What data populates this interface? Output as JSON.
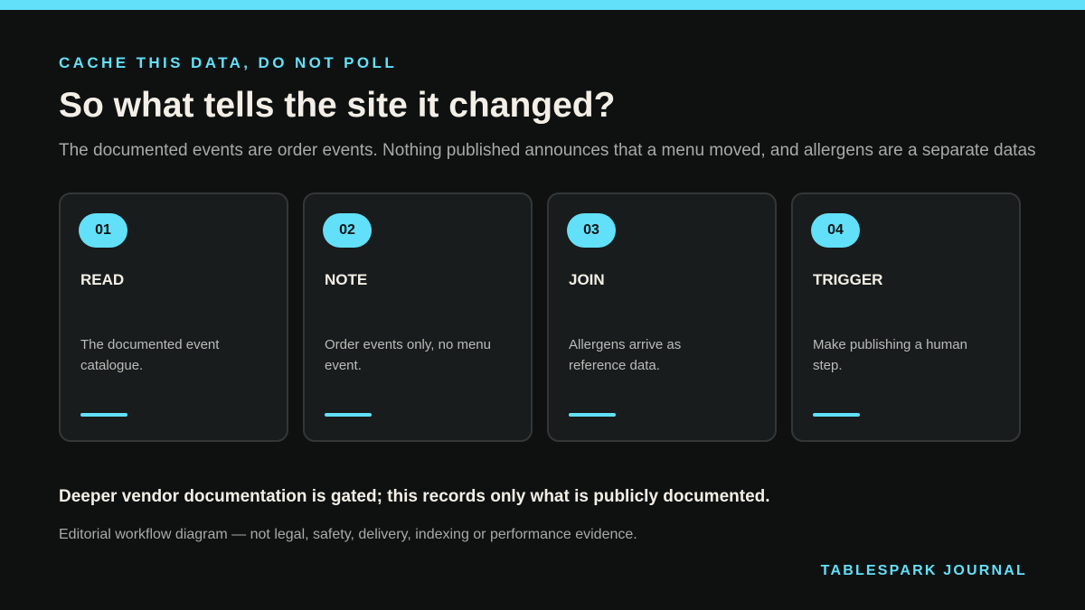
{
  "eyebrow": "CACHE THIS DATA, DO NOT POLL",
  "title": "So what tells the site it changed?",
  "subtitle": "The documented events are order events. Nothing published announces that a menu moved, and allergens are a separate datas",
  "steps": [
    {
      "number": "01",
      "title": "READ",
      "body": "The documented event catalogue."
    },
    {
      "number": "02",
      "title": "NOTE",
      "body": "Order events only, no menu event."
    },
    {
      "number": "03",
      "title": "JOIN",
      "body": "Allergens arrive as reference data."
    },
    {
      "number": "04",
      "title": "TRIGGER",
      "body": "Make publishing a human step."
    }
  ],
  "note": "Deeper vendor documentation is gated; this records only what is publicly documented.",
  "disclaimer": "Editorial workflow diagram — not legal, safety, delivery, indexing or performance evidence.",
  "brand": "TABLESPARK JOURNAL",
  "colors": {
    "accent": "#62e0f9",
    "background": "#0f1111",
    "card": "#181c1c",
    "heading": "#f3efe6",
    "muted": "#a7aaa8"
  }
}
